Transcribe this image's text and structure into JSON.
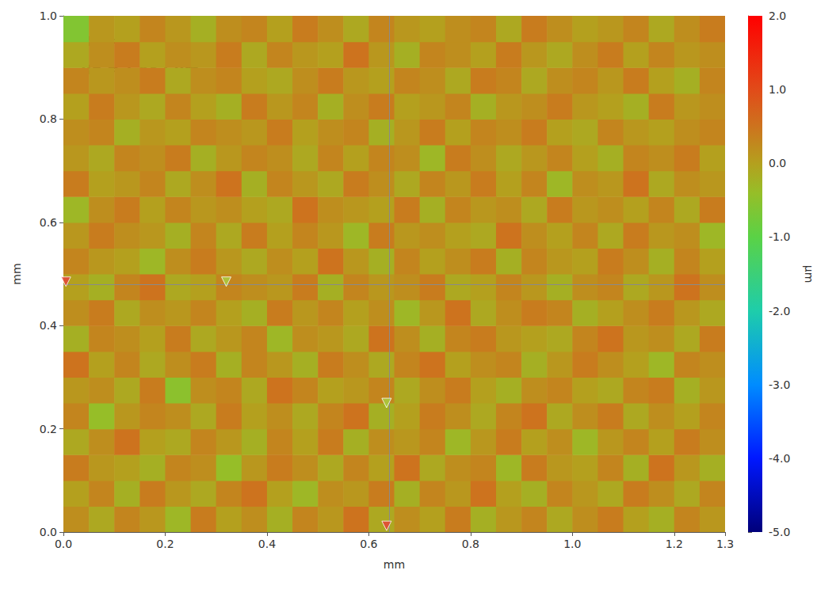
{
  "chart_data": {
    "type": "heatmap",
    "annotations": [
      "Ra = 0.197 µm",
      "Rp = 1.657 µm"
    ],
    "x_label": "mm",
    "y_label": "mm",
    "xlim": [
      0,
      1.3
    ],
    "ylim": [
      0,
      1
    ],
    "xticks": [
      {
        "value": 0,
        "label": "0.0"
      },
      0.2,
      0.4,
      0.6,
      0.8,
      {
        "value": 1,
        "label": "1.0"
      },
      1.2,
      1.3
    ],
    "yticks": [
      {
        "value": 0,
        "label": "0.0"
      },
      0.2,
      0.4,
      0.6,
      0.8,
      {
        "value": 1,
        "label": "1.0"
      }
    ],
    "grid": false,
    "colorbar": {
      "label": "µm",
      "range": [
        -5,
        2
      ],
      "ticks": [
        {
          "value": -5,
          "label": "-5.0"
        },
        {
          "value": -4,
          "label": "-4.0"
        },
        {
          "value": -3,
          "label": "-3.0"
        },
        {
          "value": -2,
          "label": "-2.0"
        },
        {
          "value": -1,
          "label": "-1.0"
        },
        {
          "value": 0,
          "label": "0.0"
        },
        {
          "value": 1,
          "label": "1.0"
        },
        {
          "value": 2,
          "label": "2.0"
        }
      ]
    },
    "cell_width": 0.05,
    "cell_height": 0.05,
    "cells": [
      [
        0.2,
        -0.1,
        0.3,
        0.1,
        -0.3,
        0.4,
        0.0,
        0.2,
        -0.2,
        0.3,
        0.1,
        0.5,
        -0.1,
        0.2,
        0.0,
        0.4,
        -0.2,
        0.1,
        0.3,
        -0.1,
        0.2,
        0.4,
        0.0,
        -0.2,
        0.3,
        0.1
      ],
      [
        0.0,
        0.3,
        -0.2,
        0.4,
        0.1,
        -0.1,
        0.3,
        0.5,
        0.0,
        -0.3,
        0.2,
        0.1,
        0.4,
        -0.2,
        0.3,
        0.1,
        0.5,
        0.0,
        -0.2,
        0.3,
        0.1,
        -0.1,
        0.4,
        0.2,
        -0.1,
        0.3
      ],
      [
        0.4,
        0.1,
        0.0,
        -0.2,
        0.3,
        0.2,
        -0.4,
        0.1,
        0.4,
        0.2,
        -0.1,
        0.3,
        0.0,
        0.5,
        -0.1,
        0.2,
        0.3,
        -0.3,
        0.4,
        0.1,
        0.0,
        0.3,
        -0.2,
        0.5,
        0.1,
        -0.2
      ],
      [
        -0.1,
        0.2,
        0.5,
        0.0,
        -0.1,
        0.3,
        0.1,
        -0.2,
        0.3,
        0.0,
        0.4,
        -0.2,
        0.2,
        0.1,
        0.3,
        -0.3,
        0.1,
        0.4,
        0.0,
        0.2,
        -0.3,
        0.1,
        0.3,
        0.0,
        0.4,
        0.2
      ],
      [
        0.3,
        -0.4,
        0.1,
        0.3,
        0.2,
        -0.1,
        0.4,
        0.0,
        0.2,
        -0.1,
        0.3,
        0.5,
        -0.2,
        0.0,
        0.4,
        0.2,
        -0.1,
        0.3,
        0.5,
        -0.1,
        0.2,
        0.4,
        -0.1,
        0.2,
        0.0,
        0.3
      ],
      [
        0.1,
        0.2,
        -0.1,
        0.4,
        -0.5,
        0.2,
        0.3,
        -0.1,
        0.5,
        0.3,
        0.0,
        0.1,
        0.3,
        -0.1,
        0.2,
        0.4,
        0.0,
        -0.2,
        0.2,
        0.3,
        0.0,
        -0.1,
        0.3,
        0.4,
        -0.2,
        0.1
      ],
      [
        0.5,
        0.0,
        0.3,
        -0.1,
        0.2,
        0.4,
        -0.2,
        0.3,
        0.1,
        -0.2,
        0.4,
        0.2,
        -0.1,
        0.3,
        0.5,
        0.0,
        0.2,
        0.3,
        -0.2,
        0.1,
        0.4,
        0.2,
        0.0,
        -0.3,
        0.3,
        0.2
      ],
      [
        -0.2,
        0.3,
        0.2,
        0.0,
        0.4,
        -0.1,
        0.1,
        0.3,
        -0.3,
        0.2,
        0.1,
        -0.1,
        0.5,
        0.2,
        -0.2,
        0.3,
        0.4,
        0.1,
        0.0,
        -0.1,
        0.3,
        0.5,
        0.1,
        0.2,
        -0.1,
        0.4
      ],
      [
        0.2,
        0.4,
        -0.1,
        0.2,
        0.1,
        0.3,
        0.0,
        -0.2,
        0.4,
        0.1,
        0.3,
        0.0,
        0.2,
        -0.3,
        0.1,
        0.5,
        -0.1,
        0.2,
        0.4,
        0.3,
        -0.2,
        0.0,
        0.2,
        0.4,
        0.1,
        -0.1
      ],
      [
        0.0,
        -0.2,
        0.3,
        0.5,
        -0.1,
        0.0,
        0.3,
        0.2,
        0.1,
        0.4,
        -0.2,
        0.3,
        0.1,
        0.2,
        0.4,
        -0.1,
        0.0,
        0.3,
        0.1,
        -0.2,
        0.2,
        0.3,
        -0.1,
        0.1,
        0.5,
        0.2
      ],
      [
        0.3,
        0.1,
        0.0,
        -0.3,
        0.2,
        0.4,
        0.1,
        -0.1,
        0.2,
        0.0,
        0.5,
        0.1,
        -0.2,
        0.3,
        0.0,
        0.2,
        0.4,
        -0.2,
        0.3,
        0.1,
        0.0,
        0.4,
        0.2,
        -0.2,
        0.3,
        0.0
      ],
      [
        0.1,
        0.4,
        0.2,
        0.1,
        -0.2,
        0.3,
        -0.1,
        0.4,
        0.0,
        0.3,
        0.1,
        -0.3,
        0.4,
        0.1,
        0.2,
        0.0,
        -0.1,
        0.5,
        0.2,
        0.0,
        0.3,
        -0.1,
        0.4,
        0.1,
        0.2,
        -0.3
      ],
      [
        -0.3,
        0.2,
        0.4,
        0.0,
        0.3,
        0.1,
        0.2,
        0.0,
        -0.1,
        0.5,
        0.2,
        0.1,
        0.0,
        0.4,
        -0.2,
        0.3,
        0.1,
        0.2,
        -0.1,
        0.4,
        0.1,
        0.2,
        0.0,
        0.3,
        -0.1,
        0.4
      ],
      [
        0.4,
        0.0,
        0.1,
        0.3,
        -0.1,
        0.2,
        0.5,
        -0.2,
        0.3,
        0.1,
        -0.1,
        0.4,
        0.2,
        -0.1,
        0.3,
        0.1,
        0.4,
        0.0,
        0.3,
        -0.3,
        0.2,
        0.1,
        0.5,
        -0.1,
        0.2,
        0.1
      ],
      [
        0.1,
        -0.1,
        0.3,
        0.2,
        0.4,
        -0.2,
        0.1,
        0.3,
        0.2,
        -0.1,
        0.3,
        0.0,
        0.3,
        0.2,
        -0.3,
        0.4,
        0.2,
        -0.1,
        0.1,
        0.3,
        0.0,
        -0.2,
        0.3,
        0.2,
        0.4,
        0.0
      ],
      [
        0.2,
        0.3,
        -0.2,
        0.1,
        0.0,
        0.3,
        0.2,
        0.1,
        0.4,
        0.0,
        0.2,
        0.3,
        -0.2,
        0.1,
        0.4,
        0.0,
        0.3,
        0.2,
        0.4,
        0.0,
        -0.1,
        0.3,
        0.1,
        0.0,
        0.2,
        0.3
      ],
      [
        0.0,
        0.4,
        0.1,
        -0.1,
        0.3,
        0.0,
        -0.2,
        0.4,
        0.1,
        0.3,
        -0.2,
        0.2,
        0.4,
        0.0,
        0.1,
        0.3,
        -0.2,
        0.1,
        0.2,
        0.4,
        0.1,
        0.0,
        -0.2,
        0.4,
        0.1,
        0.2
      ],
      [
        0.3,
        0.1,
        0.2,
        0.4,
        -0.1,
        0.2,
        0.3,
        0.0,
        -0.1,
        0.2,
        0.4,
        0.1,
        0.0,
        0.3,
        0.2,
        -0.1,
        0.4,
        0.3,
        -0.1,
        0.2,
        0.3,
        0.1,
        0.4,
        0.0,
        -0.2,
        0.3
      ],
      [
        -0.1,
        0.2,
        0.4,
        0.0,
        0.2,
        0.1,
        0.4,
        -0.1,
        0.3,
        0.1,
        0.0,
        0.5,
        0.1,
        -0.2,
        0.3,
        0.2,
        0.0,
        0.4,
        0.1,
        -0.1,
        0.2,
        0.4,
        0.0,
        0.3,
        0.1,
        0.2
      ],
      [
        -0.6,
        0.1,
        0.0,
        0.3,
        0.1,
        -0.2,
        0.2,
        0.3,
        0.0,
        0.4,
        0.2,
        -0.1,
        0.3,
        0.1,
        0.0,
        0.2,
        0.3,
        -0.1,
        0.4,
        0.2,
        0.0,
        0.1,
        0.3,
        -0.1,
        0.2,
        0.4
      ]
    ],
    "profile_lines": {
      "x": 0.635,
      "y": 0.477
    },
    "markers": [
      {
        "x": 0.005,
        "y": 0.485,
        "color": "#e8403a"
      },
      {
        "x": 0.32,
        "y": 0.485,
        "color": "#a8d040"
      },
      {
        "x": 0.635,
        "y": 0.25,
        "color": "#a8d040"
      },
      {
        "x": 0.635,
        "y": 0.012,
        "color": "#e8403a"
      }
    ]
  }
}
